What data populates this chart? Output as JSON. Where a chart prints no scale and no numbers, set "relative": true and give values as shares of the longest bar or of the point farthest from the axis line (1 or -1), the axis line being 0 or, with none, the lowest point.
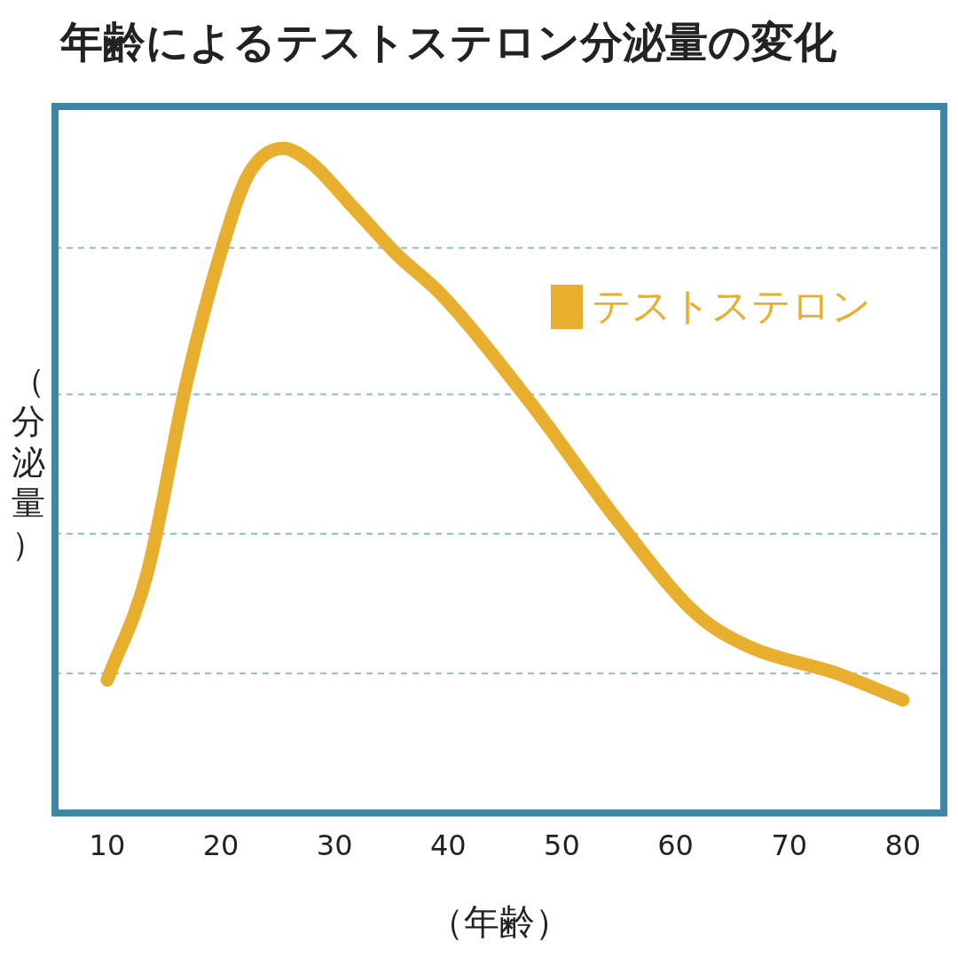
{
  "chart_data": {
    "type": "line",
    "title": "年齢によるテストステロン分泌量の変化",
    "xlabel": "（年齢）",
    "ylabel": "（分泌量）",
    "relative": true,
    "xlim": [
      5.4,
      83.6
    ],
    "xticks": [
      10,
      20,
      30,
      40,
      50,
      60,
      70,
      80
    ],
    "ref_lines": [
      {
        "axis": "y",
        "value": 0.21,
        "color": "#8bbccc",
        "line_style": "dashed"
      },
      {
        "axis": "y",
        "value": 0.42,
        "color": "#8bbccc",
        "line_style": "dashed"
      },
      {
        "axis": "y",
        "value": 0.63,
        "color": "#8bbccc",
        "line_style": "dashed"
      },
      {
        "axis": "y",
        "value": 0.85,
        "color": "#8bbccc",
        "line_style": "dashed"
      }
    ],
    "legend": "top right",
    "marker": "none",
    "line_style": "solid",
    "series": [
      {
        "name": "テストステロン",
        "color": "#e8ae2e",
        "x": [
          10,
          13.5,
          17,
          20.1,
          22.4,
          25.5,
          27.8,
          31.7,
          35.5,
          39.4,
          47.1,
          54.9,
          61.8,
          66.5,
          74.2,
          80
        ],
        "values": [
          0.2,
          0.36,
          0.65,
          0.85,
          0.96,
          1,
          0.98,
          0.91,
          0.84,
          0.78,
          0.62,
          0.44,
          0.3,
          0.25,
          0.21,
          0.17
        ]
      }
    ]
  }
}
